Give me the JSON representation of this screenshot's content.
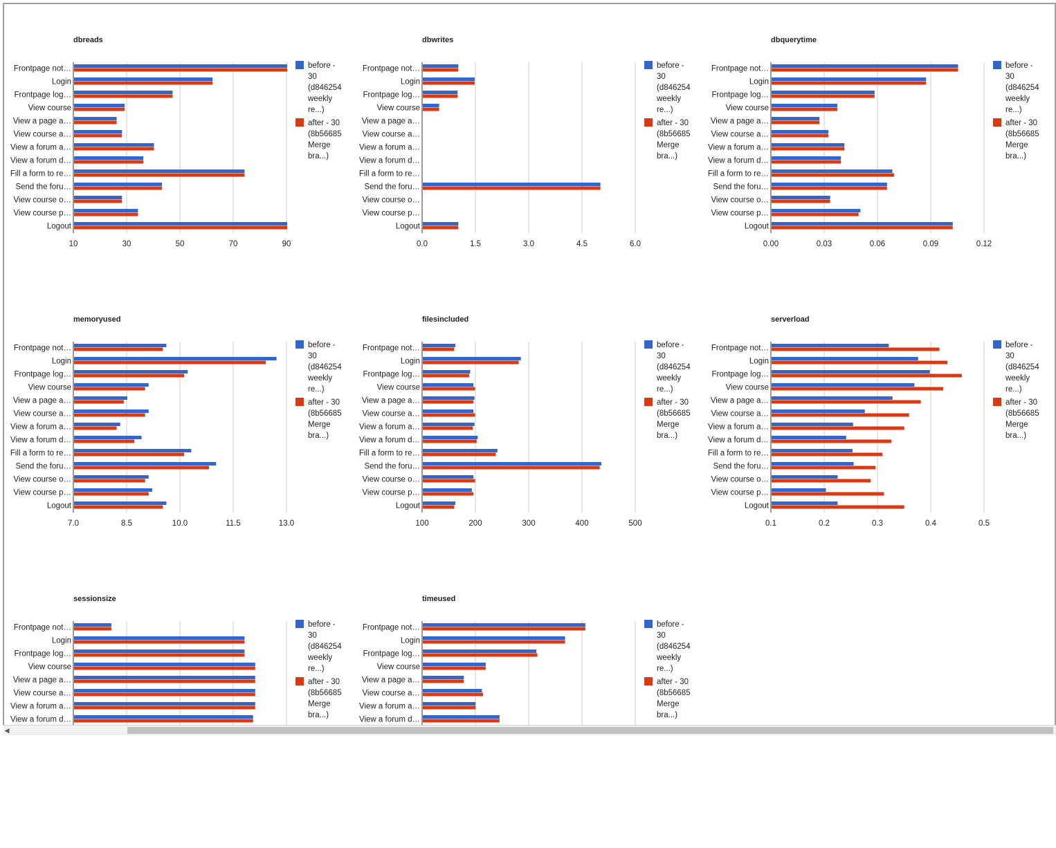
{
  "legend": {
    "before_lines": [
      "before -",
      "30",
      "(d846254",
      "weekly",
      "re...)"
    ],
    "after_lines": [
      "after - 30",
      "(8b56685",
      "Merge",
      "bra...)"
    ]
  },
  "colors": {
    "before": "#3366cc",
    "after": "#dc3912",
    "grid": "#cccccc",
    "axis": "#333333"
  },
  "chart_data": [
    {
      "type": "bar",
      "title": "dbreads",
      "categories": [
        "Frontpage not…",
        "Login",
        "Frontpage log…",
        "View course",
        "View a page a…",
        "View course a…",
        "View a forum a…",
        "View a forum d…",
        "Fill a form to re…",
        "Send the foru…",
        "View course o…",
        "View course p…",
        "Logout"
      ],
      "series": [
        {
          "name": "before - 30 (d846254 weekly re...)",
          "values": [
            90,
            62,
            47,
            29,
            26,
            28,
            40,
            36,
            74,
            43,
            28,
            34,
            90
          ]
        },
        {
          "name": "after - 30 (8b56685 Merge bra...)",
          "values": [
            90,
            62,
            47,
            29,
            26,
            28,
            40,
            36,
            74,
            43,
            28,
            34,
            90
          ]
        }
      ],
      "xlim": [
        10,
        90
      ],
      "ticks": [
        "10",
        "30",
        "50",
        "70",
        "90"
      ],
      "grid": true,
      "legend": "right"
    },
    {
      "type": "bar",
      "title": "dbwrites",
      "categories": [
        "Frontpage not…",
        "Login",
        "Frontpage log…",
        "View course",
        "View a page a…",
        "View course a…",
        "View a forum a…",
        "View a forum d…",
        "Fill a form to re…",
        "Send the foru…",
        "View course o…",
        "View course p…",
        "Logout"
      ],
      "series": [
        {
          "name": "before - 30 (d846254 weekly re...)",
          "values": [
            1,
            1.46,
            0.98,
            0.46,
            0,
            0,
            0,
            0,
            0,
            5,
            0,
            0,
            1
          ]
        },
        {
          "name": "after - 30 (8b56685 Merge bra...)",
          "values": [
            1,
            1.46,
            0.98,
            0.46,
            0,
            0,
            0,
            0,
            0,
            5,
            0,
            0,
            1
          ]
        }
      ],
      "xlim": [
        0,
        6
      ],
      "ticks": [
        "0.0",
        "1.5",
        "3.0",
        "4.5",
        "6.0"
      ],
      "grid": true,
      "legend": "right"
    },
    {
      "type": "bar",
      "title": "dbquerytime",
      "categories": [
        "Frontpage not…",
        "Login",
        "Frontpage log…",
        "View course",
        "View a page a…",
        "View course a…",
        "View a forum a…",
        "View a forum d…",
        "Fill a form to re…",
        "Send the foru…",
        "View course o…",
        "View course p…",
        "Logout"
      ],
      "series": [
        {
          "name": "before - 30 (d846254 weekly re...)",
          "values": [
            0.105,
            0.087,
            0.058,
            0.037,
            0.027,
            0.032,
            0.041,
            0.039,
            0.068,
            0.065,
            0.033,
            0.05,
            0.102
          ]
        },
        {
          "name": "after - 30 (8b56685 Merge bra...)",
          "values": [
            0.105,
            0.087,
            0.058,
            0.037,
            0.027,
            0.032,
            0.041,
            0.039,
            0.069,
            0.065,
            0.033,
            0.049,
            0.102
          ]
        }
      ],
      "xlim": [
        0,
        0.12
      ],
      "ticks": [
        "0.00",
        "0.03",
        "0.06",
        "0.09",
        "0.12"
      ],
      "grid": true,
      "legend": "right"
    },
    {
      "type": "bar",
      "title": "memoryused",
      "categories": [
        "Frontpage not…",
        "Login",
        "Frontpage log…",
        "View course",
        "View a page a…",
        "View course a…",
        "View a forum a…",
        "View a forum d…",
        "Fill a form to re…",
        "Send the foru…",
        "View course o…",
        "View course p…",
        "Logout"
      ],
      "series": [
        {
          "name": "before - 30 (d846254 weekly re...)",
          "values": [
            9.6,
            12.7,
            10.2,
            9.1,
            8.5,
            9.1,
            8.3,
            8.9,
            10.3,
            11.0,
            9.1,
            9.2,
            9.6
          ]
        },
        {
          "name": "after - 30 (8b56685 Merge bra...)",
          "values": [
            9.5,
            12.4,
            10.1,
            9.0,
            8.4,
            9.0,
            8.2,
            8.7,
            10.1,
            10.8,
            9.0,
            9.1,
            9.5
          ]
        }
      ],
      "xlim": [
        7,
        13
      ],
      "ticks": [
        "7.0",
        "8.5",
        "10.0",
        "11.5",
        "13.0"
      ],
      "grid": true,
      "legend": "right"
    },
    {
      "type": "bar",
      "title": "filesincluded",
      "categories": [
        "Frontpage not…",
        "Login",
        "Frontpage log…",
        "View course",
        "View a page a…",
        "View course a…",
        "View a forum a…",
        "View a forum d…",
        "Fill a form to re…",
        "Send the foru…",
        "View course o…",
        "View course p…",
        "Logout"
      ],
      "series": [
        {
          "name": "before - 30 (d846254 weekly re...)",
          "values": [
            161,
            284,
            189,
            195,
            197,
            195,
            197,
            203,
            240,
            435,
            195,
            192,
            161
          ]
        },
        {
          "name": "after - 30 (8b56685 Merge bra...)",
          "values": [
            159,
            280,
            187,
            198,
            195,
            198,
            194,
            201,
            237,
            432,
            198,
            195,
            159
          ]
        }
      ],
      "xlim": [
        100,
        500
      ],
      "ticks": [
        "100",
        "200",
        "300",
        "400",
        "500"
      ],
      "grid": true,
      "legend": "right"
    },
    {
      "type": "bar",
      "title": "serverload",
      "categories": [
        "Frontpage not…",
        "Login",
        "Frontpage log…",
        "View course",
        "View a page a…",
        "View course a…",
        "View a forum a…",
        "View a forum d…",
        "Fill a form to re…",
        "Send the foru…",
        "View course o…",
        "View course p…",
        "Logout"
      ],
      "series": [
        {
          "name": "before - 30 (d846254 weekly re...)",
          "values": [
            0.32,
            0.375,
            0.397,
            0.368,
            0.327,
            0.275,
            0.253,
            0.24,
            0.252,
            0.254,
            0.224,
            0.202,
            0.224
          ]
        },
        {
          "name": "after - 30 (8b56685 Merge bra...)",
          "values": [
            0.415,
            0.43,
            0.457,
            0.422,
            0.38,
            0.358,
            0.349,
            0.325,
            0.308,
            0.295,
            0.286,
            0.311,
            0.349
          ]
        }
      ],
      "xlim": [
        0.1,
        0.5
      ],
      "ticks": [
        "0.1",
        "0.2",
        "0.3",
        "0.4",
        "0.5"
      ],
      "grid": true,
      "legend": "right"
    },
    {
      "type": "bar",
      "title": "sessionsize",
      "categories": [
        "Frontpage not…",
        "Login",
        "Frontpage log…",
        "View course",
        "View a page a…",
        "View course a…",
        "View a forum a…",
        "View a forum d…"
      ],
      "series": [
        {
          "name": "before - 30 (d846254 weekly re...)",
          "values": [
            3500,
            16000,
            16000,
            17000,
            17000,
            17000,
            17000,
            16800
          ]
        },
        {
          "name": "after - 30 (8b56685 Merge bra...)",
          "values": [
            3500,
            16000,
            16000,
            17000,
            17000,
            17000,
            17000,
            16800
          ]
        }
      ],
      "xlim": [
        0,
        20000
      ],
      "ticks": [],
      "grid": true,
      "legend": "right"
    },
    {
      "type": "bar",
      "title": "timeused",
      "categories": [
        "Frontpage not…",
        "Login",
        "Frontpage log…",
        "View course",
        "View a page a…",
        "View course a…",
        "View a forum a…",
        "View a forum d…"
      ],
      "series": [
        {
          "name": "before - 30 (d846254 weekly re...)",
          "values": [
            0.305,
            0.267,
            0.213,
            0.118,
            0.077,
            0.111,
            0.099,
            0.144
          ]
        },
        {
          "name": "after - 30 (8b56685 Merge bra...)",
          "values": [
            0.305,
            0.267,
            0.215,
            0.118,
            0.077,
            0.113,
            0.099,
            0.144
          ]
        }
      ],
      "xlim": [
        0,
        0.4
      ],
      "ticks": [],
      "grid": true,
      "legend": "right"
    }
  ]
}
